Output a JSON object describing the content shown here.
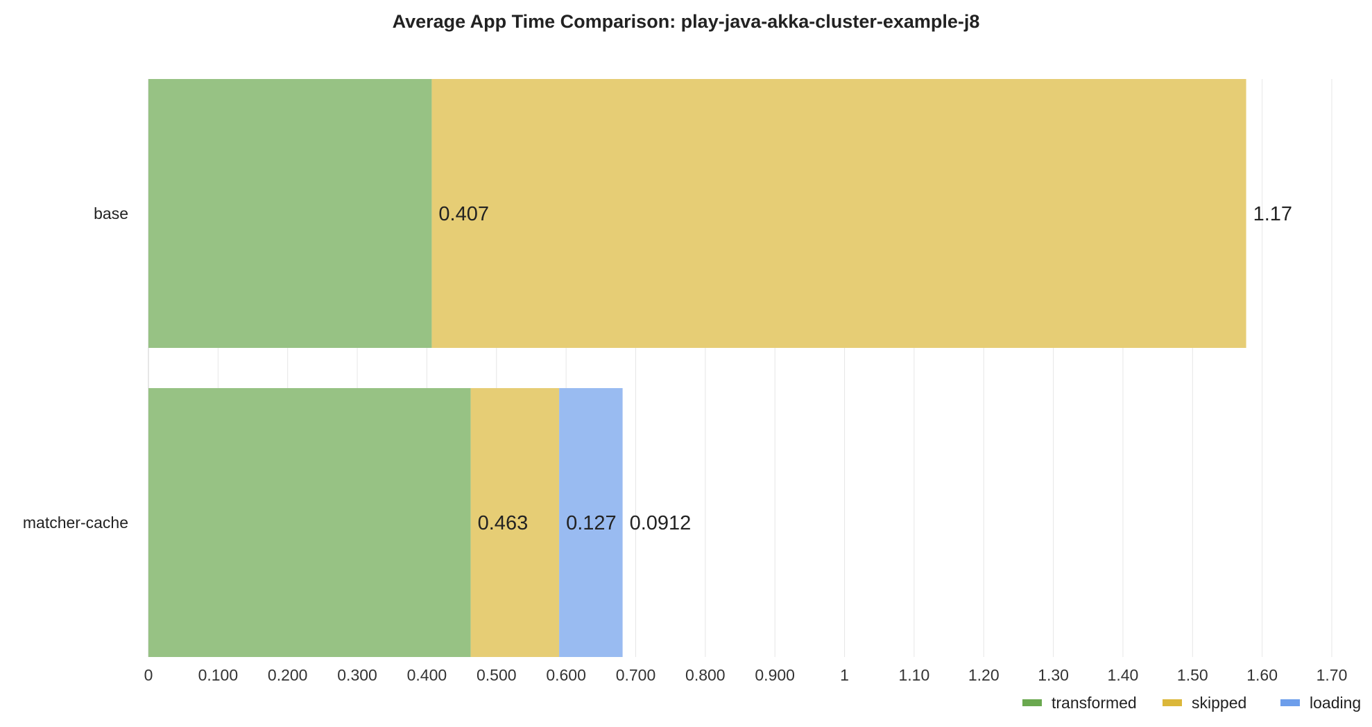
{
  "chart_data": {
    "type": "bar",
    "orientation": "horizontal",
    "stacked": true,
    "title": "Average App Time Comparison: play-java-akka-cluster-example-j8",
    "xlabel": "",
    "ylabel": "",
    "categories": [
      "base",
      "matcher-cache"
    ],
    "series": [
      {
        "name": "transformed",
        "color": "#6aa84f",
        "values": [
          0.407,
          0.463
        ]
      },
      {
        "name": "skipped",
        "color": "#dbb73a",
        "values": [
          1.17,
          0.127
        ]
      },
      {
        "name": "loading",
        "color": "#6d9eeb",
        "values": [
          null,
          0.0912
        ]
      }
    ],
    "xlim": [
      0,
      1.7
    ],
    "xticks": [
      0,
      0.1,
      0.2,
      0.3,
      0.4,
      0.5,
      0.6,
      0.7,
      0.8,
      0.9,
      1.0,
      1.1,
      1.2,
      1.3,
      1.4,
      1.5,
      1.6,
      1.7
    ],
    "xtick_labels": [
      "0",
      "0.100",
      "0.200",
      "0.300",
      "0.400",
      "0.500",
      "0.600",
      "0.700",
      "0.800",
      "0.900",
      "1",
      "1.10",
      "1.20",
      "1.30",
      "1.40",
      "1.50",
      "1.60",
      "1.70"
    ],
    "data_labels": [
      [
        "0.407",
        "1.17",
        ""
      ],
      [
        "0.463",
        "0.127",
        "0.0912"
      ]
    ],
    "grid": true,
    "legend": "bottom-right"
  }
}
